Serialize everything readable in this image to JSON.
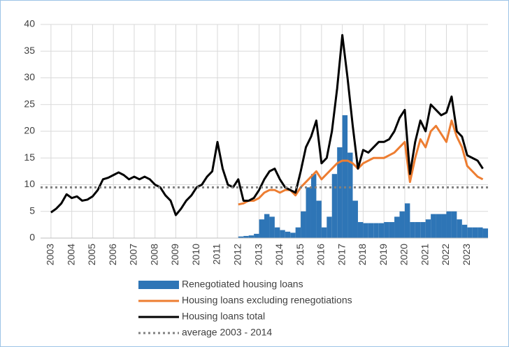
{
  "chart_data": {
    "type": "combo",
    "xlim": [
      2002.5,
      2024
    ],
    "ylim": [
      0,
      40
    ],
    "xticks": [
      2003,
      2004,
      2005,
      2006,
      2007,
      2008,
      2009,
      2010,
      2011,
      2012,
      2013,
      2014,
      2015,
      2016,
      2017,
      2018,
      2019,
      2020,
      2021,
      2022,
      2023
    ],
    "yticks": [
      0,
      5,
      10,
      15,
      20,
      25,
      30,
      35,
      40
    ],
    "grid": true,
    "series": [
      {
        "name": "Renegotiated housing loans",
        "type": "bar",
        "color": "#2e75b6",
        "x": [
          2012,
          2012.25,
          2012.5,
          2012.75,
          2013,
          2013.25,
          2013.5,
          2013.75,
          2014,
          2014.25,
          2014.5,
          2014.75,
          2015,
          2015.25,
          2015.5,
          2015.75,
          2016,
          2016.25,
          2016.5,
          2016.75,
          2017,
          2017.25,
          2017.5,
          2017.75,
          2018,
          2018.25,
          2018.5,
          2018.75,
          2019,
          2019.25,
          2019.5,
          2019.75,
          2020,
          2020.25,
          2020.5,
          2020.75,
          2021,
          2021.25,
          2021.5,
          2021.75,
          2022,
          2022.25,
          2022.5,
          2022.75,
          2023,
          2023.25,
          2023.5,
          2023.75
        ],
        "values": [
          0.3,
          0.4,
          0.5,
          0.8,
          3.5,
          4.5,
          4.0,
          2.0,
          1.5,
          1.2,
          1.0,
          2.0,
          5.0,
          9.5,
          12.0,
          7.0,
          2.0,
          4.0,
          12.0,
          17.0,
          23.0,
          16.0,
          7.0,
          3.0,
          2.8,
          2.8,
          2.8,
          2.8,
          3.0,
          3.0,
          4.0,
          5.0,
          6.5,
          3.0,
          3.0,
          3.0,
          3.5,
          4.5,
          4.5,
          4.5,
          5.0,
          5.0,
          3.5,
          2.5,
          2.0,
          2.0,
          2.0,
          1.8
        ]
      },
      {
        "name": "Housing loans excluding renegotiations",
        "type": "line",
        "color": "#ed7d31",
        "x": [
          2012,
          2012.25,
          2012.5,
          2012.75,
          2013,
          2013.25,
          2013.5,
          2013.75,
          2014,
          2014.25,
          2014.5,
          2014.75,
          2015,
          2015.25,
          2015.5,
          2015.75,
          2016,
          2016.25,
          2016.5,
          2016.75,
          2017,
          2017.25,
          2017.5,
          2017.75,
          2018,
          2018.25,
          2018.5,
          2018.75,
          2019,
          2019.25,
          2019.5,
          2019.75,
          2020,
          2020.25,
          2020.5,
          2020.75,
          2021,
          2021.25,
          2021.5,
          2021.75,
          2022,
          2022.25,
          2022.5,
          2022.75,
          2023,
          2023.25,
          2023.5,
          2023.75
        ],
        "values": [
          6.3,
          6.5,
          7.0,
          7.0,
          7.5,
          8.5,
          9.0,
          9.0,
          8.5,
          9.0,
          9.0,
          8.0,
          9.5,
          10.5,
          11.5,
          12.5,
          11.0,
          12.0,
          13.0,
          14.0,
          14.5,
          14.5,
          14.0,
          13.0,
          14.0,
          14.5,
          15.0,
          15.0,
          15.0,
          15.5,
          16.0,
          17.0,
          18.0,
          10.5,
          15.0,
          18.5,
          17.0,
          20.0,
          21.0,
          19.5,
          18.0,
          22.0,
          19.0,
          17.0,
          13.5,
          12.5,
          11.5,
          11.0
        ]
      },
      {
        "name": "Housing loans total",
        "type": "line",
        "color": "#000000",
        "x": [
          2003,
          2003.25,
          2003.5,
          2003.75,
          2004,
          2004.25,
          2004.5,
          2004.75,
          2005,
          2005.25,
          2005.5,
          2005.75,
          2006,
          2006.25,
          2006.5,
          2006.75,
          2007,
          2007.25,
          2007.5,
          2007.75,
          2008,
          2008.25,
          2008.5,
          2008.75,
          2009,
          2009.25,
          2009.5,
          2009.75,
          2010,
          2010.25,
          2010.5,
          2010.75,
          2011,
          2011.25,
          2011.5,
          2011.75,
          2012,
          2012.25,
          2012.5,
          2012.75,
          2013,
          2013.25,
          2013.5,
          2013.75,
          2014,
          2014.25,
          2014.5,
          2014.75,
          2015,
          2015.25,
          2015.5,
          2015.75,
          2016,
          2016.25,
          2016.5,
          2016.75,
          2017,
          2017.25,
          2017.5,
          2017.75,
          2018,
          2018.25,
          2018.5,
          2018.75,
          2019,
          2019.25,
          2019.5,
          2019.75,
          2020,
          2020.25,
          2020.5,
          2020.75,
          2021,
          2021.25,
          2021.5,
          2021.75,
          2022,
          2022.25,
          2022.5,
          2022.75,
          2023,
          2023.25,
          2023.5,
          2023.75
        ],
        "values": [
          4.8,
          5.5,
          6.5,
          8.2,
          7.5,
          7.8,
          7.0,
          7.2,
          7.8,
          9.0,
          11.0,
          11.3,
          11.8,
          12.3,
          11.8,
          11.0,
          11.5,
          11.0,
          11.5,
          11.0,
          10.0,
          9.5,
          8.0,
          7.0,
          4.3,
          5.5,
          7.0,
          8.0,
          9.5,
          10.0,
          11.5,
          12.5,
          18.0,
          13.0,
          10.0,
          9.5,
          11.0,
          7.0,
          7.0,
          7.5,
          9.0,
          11.0,
          12.5,
          13.0,
          11.0,
          9.5,
          9.0,
          8.5,
          12.5,
          17.0,
          19.0,
          22.0,
          14.0,
          15.0,
          20.0,
          28.0,
          38.0,
          30.0,
          21.0,
          13.0,
          16.5,
          16.0,
          17.0,
          18.0,
          18.0,
          18.5,
          20.0,
          22.5,
          24.0,
          12.0,
          18.0,
          22.0,
          20.0,
          25.0,
          24.0,
          23.0,
          23.5,
          26.5,
          20.0,
          19.0,
          15.5,
          15.0,
          14.5,
          13.0
        ]
      }
    ],
    "average": {
      "name": "average 2003 - 2014",
      "value": 9.5,
      "color": "#808080"
    }
  }
}
